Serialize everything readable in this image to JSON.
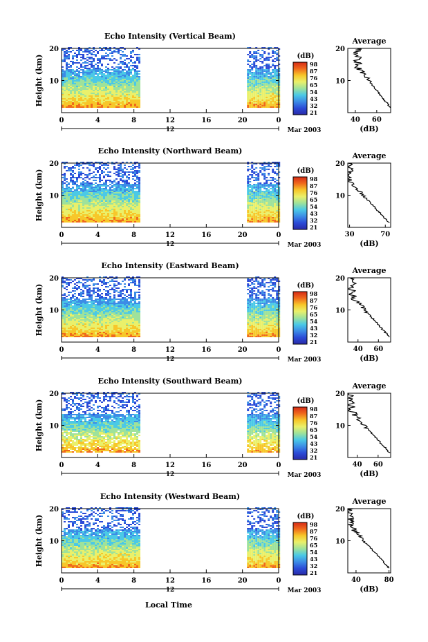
{
  "chart_data": [
    {
      "type": "heatmap",
      "title": "Echo Intensity (Vertical Beam)",
      "ylabel": "Height (km)",
      "x_ticks": [
        "0",
        "4",
        "8",
        "12",
        "16",
        "20",
        "0"
      ],
      "y_ticks": [
        "20",
        "10"
      ],
      "date_label": "12",
      "month_label": "Mar 2003",
      "data_intervals_hours": [
        [
          0,
          8.6
        ],
        [
          20.5,
          24
        ]
      ],
      "height_range_km": [
        1.5,
        20
      ],
      "colorbar": {
        "unit": "(dB)",
        "ticks": [
          "98",
          "87",
          "76",
          "65",
          "54",
          "43",
          "32",
          "21"
        ],
        "colors": [
          "#d62a16",
          "#f06a1c",
          "#f7c72a",
          "#eaf06a",
          "#9ee29b",
          "#4bc9e6",
          "#3c8ce6",
          "#2b4bd7",
          "#2a2aa8"
        ]
      },
      "profile": {
        "title": "Average",
        "xlabel": "(dB)",
        "x_ticks": [
          "40",
          "60"
        ],
        "y_ticks": [
          "20",
          "10"
        ],
        "x_range": [
          33,
          73
        ],
        "low_db": 42,
        "high_db": 73
      }
    },
    {
      "type": "heatmap",
      "title": "Echo Intensity (Northward Beam)",
      "ylabel": "Height (km)",
      "x_ticks": [
        "0",
        "4",
        "8",
        "12",
        "16",
        "20",
        "0"
      ],
      "y_ticks": [
        "20",
        "10"
      ],
      "date_label": "12",
      "month_label": "Mar 2003",
      "data_intervals_hours": [
        [
          0,
          8.6
        ],
        [
          20.5,
          24
        ]
      ],
      "height_range_km": [
        1.5,
        20
      ],
      "colorbar": {
        "unit": "(dB)",
        "ticks": [
          "98",
          "87",
          "76",
          "65",
          "54",
          "43",
          "32",
          "21"
        ],
        "colors": [
          "#d62a16",
          "#f06a1c",
          "#f7c72a",
          "#eaf06a",
          "#9ee29b",
          "#4bc9e6",
          "#3c8ce6",
          "#2b4bd7",
          "#2a2aa8"
        ]
      },
      "profile": {
        "title": "Average",
        "xlabel": "(dB)",
        "x_ticks": [
          "30",
          "70"
        ],
        "y_ticks": [
          "20",
          "10"
        ],
        "x_range": [
          28,
          76
        ],
        "low_db": 30,
        "high_db": 74
      }
    },
    {
      "type": "heatmap",
      "title": "Echo Intensity (Eastward Beam)",
      "ylabel": "Height (km)",
      "x_ticks": [
        "0",
        "4",
        "8",
        "12",
        "16",
        "20",
        "0"
      ],
      "y_ticks": [
        "20",
        "10"
      ],
      "date_label": "12",
      "month_label": "Mar 2003",
      "data_intervals_hours": [
        [
          0,
          8.6
        ],
        [
          20.5,
          24
        ]
      ],
      "height_range_km": [
        1.5,
        20
      ],
      "colorbar": {
        "unit": "(dB)",
        "ticks": [
          "98",
          "87",
          "76",
          "65",
          "54",
          "43",
          "32",
          "21"
        ],
        "colors": [
          "#d62a16",
          "#f06a1c",
          "#f7c72a",
          "#eaf06a",
          "#9ee29b",
          "#4bc9e6",
          "#3c8ce6",
          "#2b4bd7",
          "#2a2aa8"
        ]
      },
      "profile": {
        "title": "Average",
        "xlabel": "(dB)",
        "x_ticks": [
          "40",
          "60"
        ],
        "y_ticks": [
          "20",
          "10"
        ],
        "x_range": [
          30,
          72
        ],
        "low_db": 34,
        "high_db": 71
      }
    },
    {
      "type": "heatmap",
      "title": "Echo Intensity (Southward Beam)",
      "ylabel": "Height (km)",
      "x_ticks": [
        "0",
        "4",
        "8",
        "12",
        "16",
        "20",
        "0"
      ],
      "y_ticks": [
        "20",
        "10"
      ],
      "date_label": "12",
      "month_label": "Mar 2003",
      "data_intervals_hours": [
        [
          0,
          8.6
        ],
        [
          20.5,
          24
        ]
      ],
      "height_range_km": [
        1.5,
        20
      ],
      "colorbar": {
        "unit": "(dB)",
        "ticks": [
          "98",
          "87",
          "76",
          "65",
          "54",
          "43",
          "32",
          "21"
        ],
        "colors": [
          "#d62a16",
          "#f06a1c",
          "#f7c72a",
          "#eaf06a",
          "#9ee29b",
          "#4bc9e6",
          "#3c8ce6",
          "#2b4bd7",
          "#2a2aa8"
        ]
      },
      "profile": {
        "title": "Average",
        "xlabel": "(dB)",
        "x_ticks": [
          "40",
          "60"
        ],
        "y_ticks": [
          "20",
          "10"
        ],
        "x_range": [
          31,
          72
        ],
        "low_db": 34,
        "high_db": 71
      }
    },
    {
      "type": "heatmap",
      "title": "Echo Intensity (Westward Beam)",
      "ylabel": "Height (km)",
      "x_ticks": [
        "0",
        "4",
        "8",
        "12",
        "16",
        "20",
        "0"
      ],
      "y_ticks": [
        "20",
        "10"
      ],
      "date_label": "12",
      "month_label": "Mar 2003",
      "data_intervals_hours": [
        [
          0,
          8.6
        ],
        [
          20.5,
          24
        ]
      ],
      "height_range_km": [
        1.5,
        20
      ],
      "colorbar": {
        "unit": "(dB)",
        "ticks": [
          "98",
          "87",
          "76",
          "65",
          "54",
          "43",
          "32",
          "21"
        ],
        "colors": [
          "#d62a16",
          "#f06a1c",
          "#f7c72a",
          "#eaf06a",
          "#9ee29b",
          "#4bc9e6",
          "#3c8ce6",
          "#2b4bd7",
          "#2a2aa8"
        ]
      },
      "profile": {
        "title": "Average",
        "xlabel": "(dB)",
        "x_ticks": [
          "40",
          "80"
        ],
        "y_ticks": [
          "20",
          "10"
        ],
        "x_range": [
          30,
          82
        ],
        "low_db": 34,
        "high_db": 80
      }
    }
  ],
  "figure": {
    "xlabel": "Local Time"
  }
}
